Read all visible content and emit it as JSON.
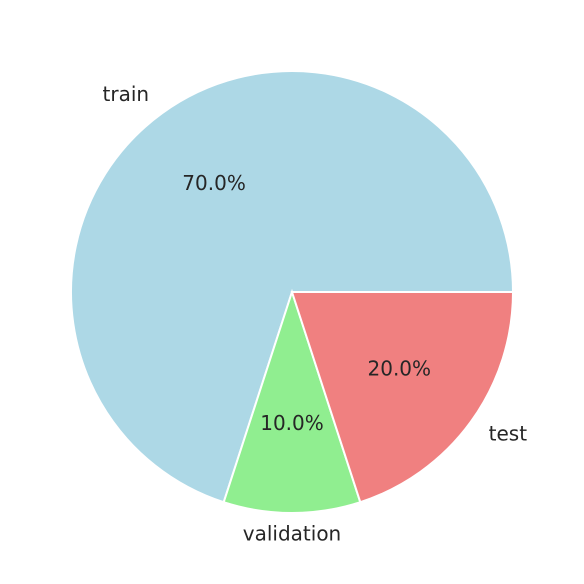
{
  "chart_data": {
    "type": "pie",
    "title": "",
    "labels": [
      "train",
      "validation",
      "test"
    ],
    "values": [
      70.0,
      10.0,
      20.0
    ],
    "percent_labels": [
      "70.0%",
      "10.0%",
      "20.0%"
    ],
    "colors": [
      "#add8e6",
      "#90ee90",
      "#f08080"
    ],
    "start_angle_deg": 0,
    "direction": "counterclockwise"
  }
}
